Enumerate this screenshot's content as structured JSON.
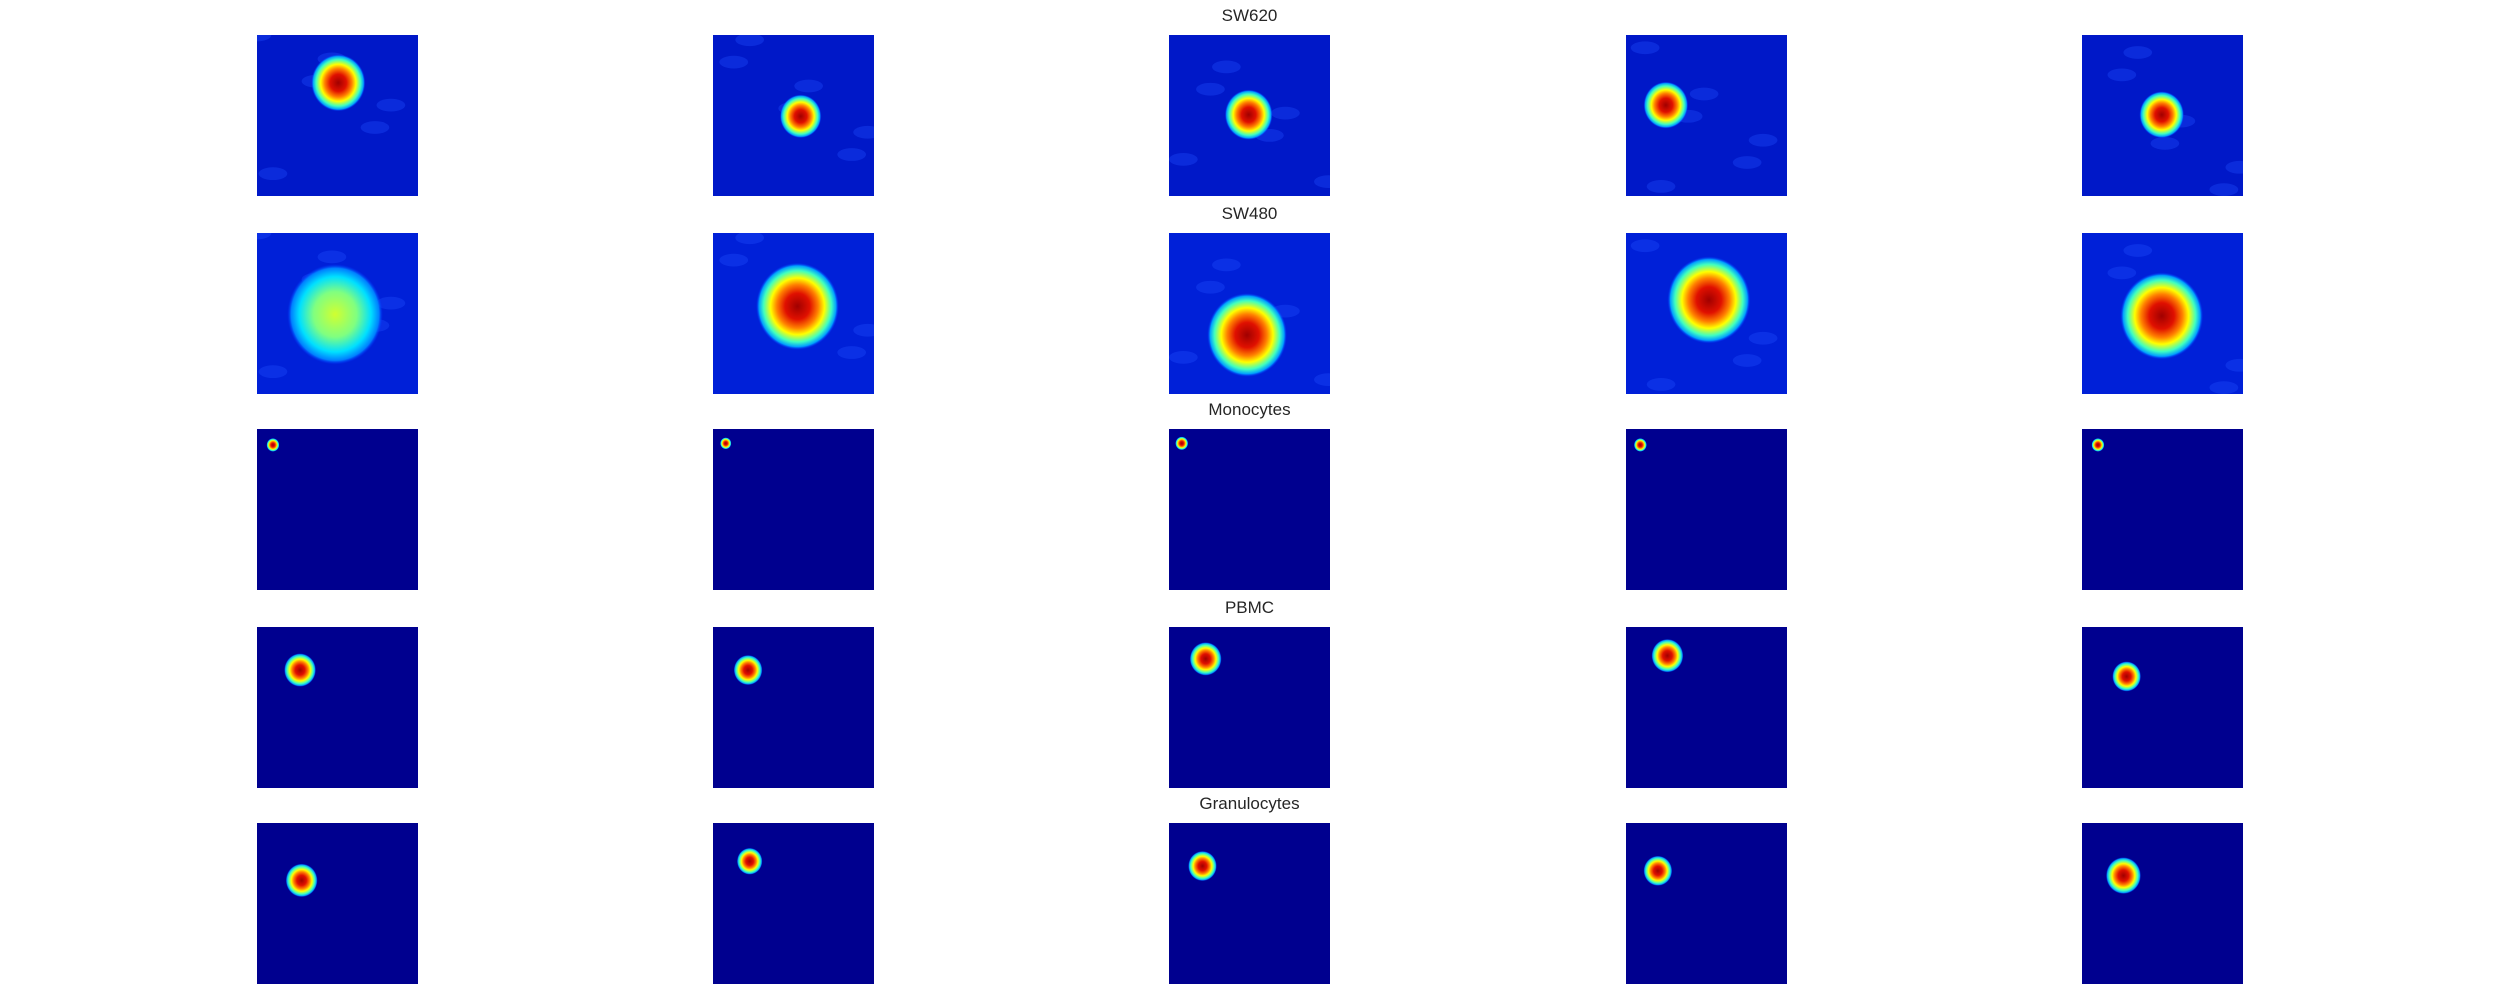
{
  "rows": [
    {
      "title": "SW620"
    },
    {
      "title": "SW480"
    },
    {
      "title": "Monocytes"
    },
    {
      "title": "PBMC"
    },
    {
      "title": "Granulocytes"
    }
  ]
}
